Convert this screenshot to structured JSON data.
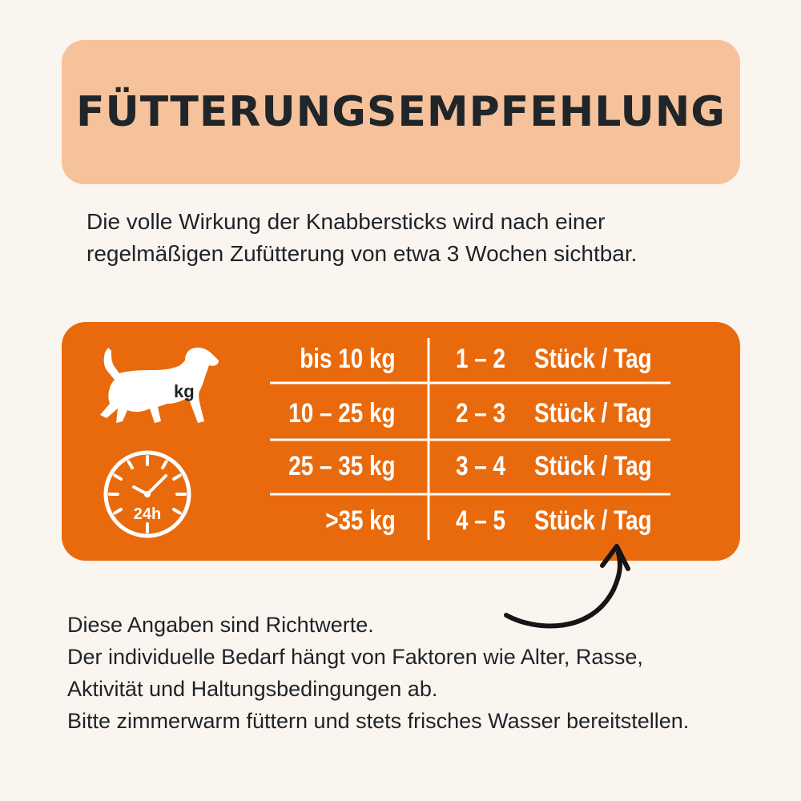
{
  "header": {
    "title": "FÜTTERUNGSEMPFEHLUNG"
  },
  "intro": {
    "line1": "Die volle Wirkung der Knabbersticks wird nach einer",
    "line2": "regelmäßigen Zufütterung von etwa 3 Wochen sichtbar."
  },
  "panel": {
    "dog_badge": "kg",
    "clock_label": "24h",
    "rows": [
      {
        "weight": "bis 10 kg",
        "count": "1 – 2",
        "unit": "Stück / Tag"
      },
      {
        "weight": "10 – 25 kg",
        "count": "2 – 3",
        "unit": "Stück / Tag"
      },
      {
        "weight": "25 – 35 kg",
        "count": "3 – 4",
        "unit": "Stück / Tag"
      },
      {
        "weight": ">35 kg",
        "count": "4 – 5",
        "unit": "Stück / Tag"
      }
    ]
  },
  "notes": {
    "line1": "Diese Angaben sind Richtwerte.",
    "line2": "Der individuelle Bedarf hängt von Faktoren wie Alter, Rasse,",
    "line3": "Aktivität und Haltungsbedingungen ab.",
    "line4": "Bitte zimmerwarm füttern und stets frisches Wasser bereitstellen."
  },
  "colors": {
    "background": "#fbf5f0",
    "title_box": "#f6c29b",
    "panel": "#e96a0c",
    "text": "#1e2326"
  },
  "icons": [
    "dog-icon",
    "clock-icon",
    "curved-arrow-icon"
  ]
}
